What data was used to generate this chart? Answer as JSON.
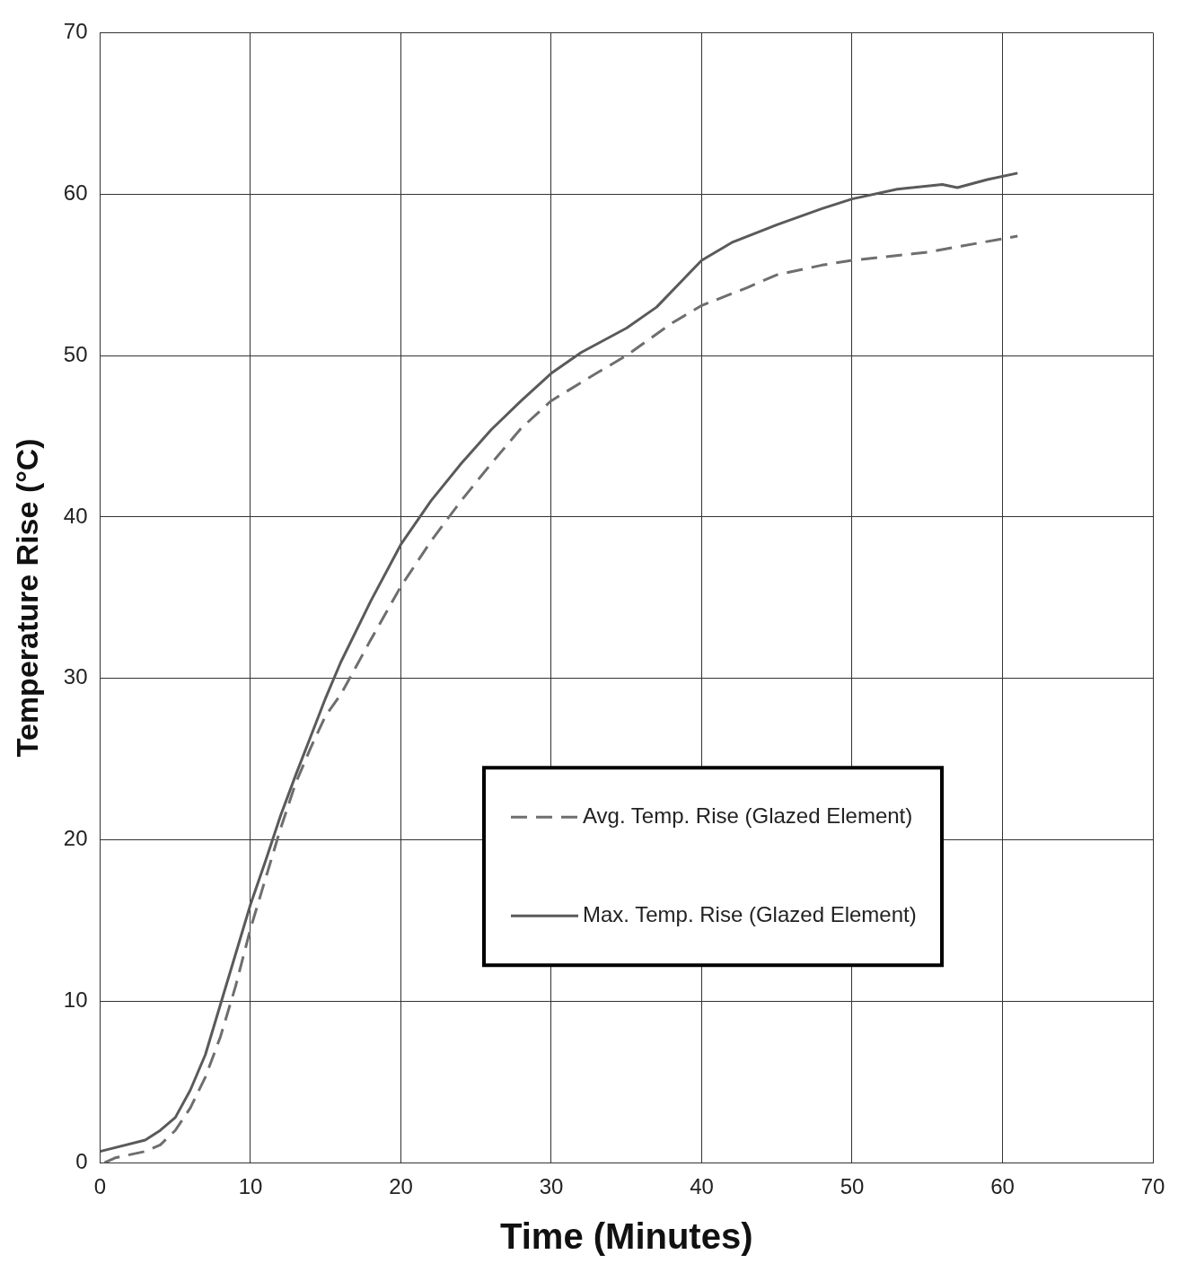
{
  "chart_data": {
    "type": "line",
    "xlabel": "Time (Minutes)",
    "ylabel": "Temperature Rise (°C)",
    "xlim": [
      0,
      70
    ],
    "xticks": [
      0,
      10,
      20,
      30,
      40,
      50,
      60,
      70
    ],
    "ylim": [
      0,
      70
    ],
    "yticks": [
      0,
      10,
      20,
      30,
      40,
      50,
      60,
      70
    ],
    "grid": true,
    "legend": "bottom right",
    "marker": "none",
    "series": [
      {
        "name": "Avg. Temp. Rise (Glazed Element)",
        "color": "#6e6e6e",
        "line_style": "dashed",
        "x": [
          0.3,
          1,
          3,
          4,
          5,
          6,
          7,
          8,
          9,
          10,
          11,
          12,
          13,
          14,
          15,
          16,
          18,
          20,
          22,
          24,
          26,
          28,
          30,
          33,
          35,
          38,
          40,
          43,
          45,
          48,
          50,
          55,
          61
        ],
        "values": [
          0,
          0.3,
          0.7,
          1.1,
          2,
          3.4,
          5.3,
          7.8,
          10.9,
          14.5,
          17.6,
          20.7,
          23.5,
          25.7,
          27.7,
          29,
          32.4,
          35.7,
          38.5,
          41,
          43.3,
          45.5,
          47.2,
          48.9,
          50,
          52,
          53.1,
          54.2,
          55,
          55.6,
          55.9,
          56.4,
          57.4
        ]
      },
      {
        "name": "Max. Temp. Rise (Glazed Element)",
        "color": "#5a5a5a",
        "line_style": "solid",
        "x": [
          0,
          3,
          4,
          5,
          6,
          7,
          8,
          9,
          10,
          11,
          12,
          13,
          14,
          15,
          16,
          18,
          20,
          22,
          24,
          26,
          28,
          30,
          32,
          35,
          37,
          40,
          42,
          45,
          48,
          50,
          53,
          56,
          57,
          59,
          61
        ],
        "values": [
          0.7,
          1.4,
          2,
          2.8,
          4.5,
          6.7,
          9.8,
          12.9,
          16,
          18.7,
          21.5,
          24,
          26.4,
          28.8,
          31,
          34.8,
          38.3,
          41,
          43.3,
          45.4,
          47.2,
          48.9,
          50.2,
          51.7,
          53,
          55.9,
          57,
          58.1,
          59.1,
          59.7,
          60.3,
          60.6,
          60.4,
          60.9,
          61.3
        ]
      }
    ]
  }
}
